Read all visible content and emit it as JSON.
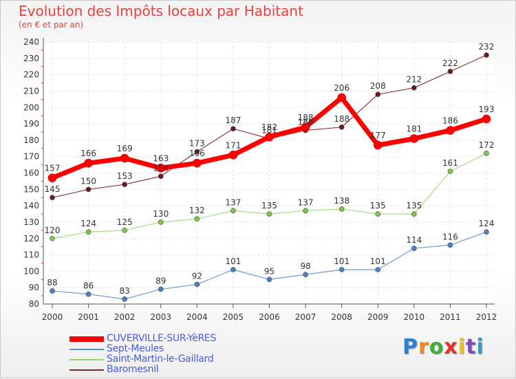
{
  "chart_data": {
    "type": "line",
    "title": "Evolution des Impôts locaux par Habitant",
    "subtitle": "(en € et par an)",
    "x": [
      "2000",
      "2001",
      "2002",
      "2003",
      "2004",
      "2005",
      "2006",
      "2007",
      "2008",
      "2009",
      "2010",
      "2011",
      "2012"
    ],
    "ylim": [
      80,
      240
    ],
    "yticks": [
      80,
      90,
      100,
      110,
      120,
      130,
      140,
      150,
      160,
      170,
      180,
      190,
      200,
      210,
      220,
      230,
      240
    ],
    "grid": true,
    "legend_position": "bottom-left",
    "series": [
      {
        "name": "CUVERVILLE-SUR-YèRES",
        "color": "#ff0000",
        "values": [
          157,
          166,
          169,
          163,
          166,
          171,
          182,
          188,
          206,
          177,
          181,
          186,
          193
        ]
      },
      {
        "name": "Sept-Meules",
        "color": "#5b8fc9",
        "values": [
          88,
          86,
          83,
          89,
          92,
          101,
          95,
          98,
          101,
          101,
          114,
          116,
          124
        ]
      },
      {
        "name": "Saint-Martin-le-Gaillard",
        "color": "#9ad46b",
        "values": [
          120,
          124,
          125,
          130,
          132,
          137,
          135,
          137,
          138,
          135,
          135,
          161,
          172
        ]
      },
      {
        "name": "Baromesnil",
        "color": "#7b2c2c",
        "values": [
          145,
          150,
          153,
          158,
          173,
          187,
          181,
          186,
          188,
          208,
          212,
          222,
          232
        ]
      }
    ]
  },
  "logo": {
    "letters": [
      "P",
      "r",
      "o",
      "x",
      "i",
      "t",
      "i"
    ],
    "colors": [
      "#2f7fd1",
      "#f08a1c",
      "#3fae3f",
      "#e23030",
      "#f0c020",
      "#7a4fb0",
      "#2f9fd1"
    ]
  }
}
